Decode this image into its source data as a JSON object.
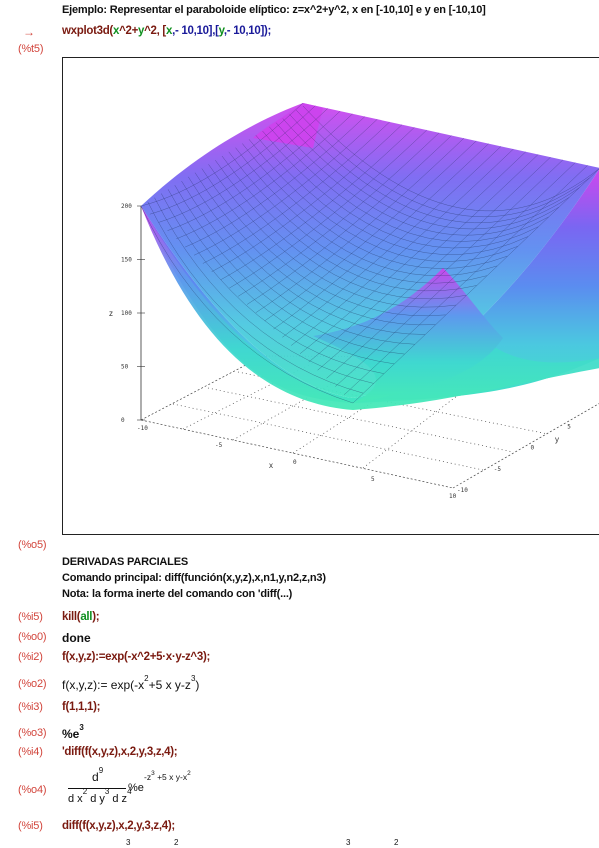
{
  "cells": {
    "example_text": "Ejemplo: Representar el paraboloide elíptico: z=x^2+y^2, x en [-10,10] e y en [-10,10]",
    "in15_arrow": "→",
    "in15_cmd": {
      "f": "wxplot3d(",
      "a": "x",
      "b": "^2+",
      "c": "y",
      "d": "^2, [",
      "e": "x",
      "g": ",- 10,10],[",
      "h": "y",
      "i": ",- 10,10]);"
    },
    "t15_label": "(%t5)",
    "o15_label": "(%o5)",
    "deriv_title": "DERIVADAS PARCIALES",
    "deriv_cmd": "Comando principal: diff(función(x,y,z),x,n1,y,n2,z,n3)",
    "deriv_note": "Nota: la forma inerte del comando con 'diff(...)",
    "i5_label": "(%i5)",
    "i5_cmd_fn": "kill(",
    "i5_cmd_var": "all",
    "i5_cmd_end": ");",
    "o0_label": "(%o0)",
    "o0_out": "done",
    "i2_label": "(%i2)",
    "i2_cmd": "f(x,y,z):=exp(-x^2+5·x·y-z^3);",
    "o2_label": "(%o2)",
    "o2_out_a": "f(x,y,z):= exp(-x",
    "o2_out_b": "+5 x y-z",
    "o2_sup1": "2",
    "o2_sup2": "3",
    "o2_out_c": ")",
    "i3_label": "(%i3)",
    "i3_cmd": "f(1,1,1);",
    "o3_label": "(%o3)",
    "o3_out": "%e",
    "o3_sup": "3",
    "i4_label": "(%i4)",
    "i4_cmd": "'diff(f(x,y,z),x,2,y,3,z,4);",
    "o4_label": "(%o4)",
    "o4_num": "d",
    "o4_num_sup": "9",
    "o4_den": "d x  d y  d z",
    "o4_den_sup": [
      "2",
      "3",
      "4"
    ],
    "o4_e": "%e",
    "o4_exp": "-z  +5 x y-x",
    "o4_exp_sup": [
      "3",
      "2"
    ],
    "i5b_label": "(%i5)",
    "i5b_cmd": "diff(f(x,y,z),x,2,y,3,z,4);",
    "bottom_sup": [
      "3",
      "2",
      "3",
      "2"
    ]
  },
  "plot": {
    "z_label": "z",
    "x_label": "x",
    "y_label": "y",
    "z_ticks": [
      "200",
      "150",
      "100",
      "50",
      "0"
    ],
    "x_ticks": [
      "-10",
      "-5",
      "0",
      "5",
      "10"
    ],
    "y_ticks": [
      "-10",
      "-5",
      "0",
      "5",
      "10"
    ],
    "surface_colors": {
      "top": "#cc44ee",
      "mid": "#5b7ef0",
      "low": "#3fe3c8"
    }
  },
  "chart_data": {
    "type": "surface",
    "function": "z=x^2+y^2",
    "x_range": [
      -10,
      10
    ],
    "y_range": [
      -10,
      10
    ],
    "zlim": [
      0,
      200
    ],
    "z_ticks": [
      0,
      50,
      100,
      150,
      200
    ],
    "x_ticks": [
      -10,
      -5,
      0,
      5,
      10
    ],
    "y_ticks": [
      -10,
      -5,
      0,
      5,
      10
    ],
    "xlabel": "x",
    "ylabel": "y",
    "zlabel": "z"
  }
}
